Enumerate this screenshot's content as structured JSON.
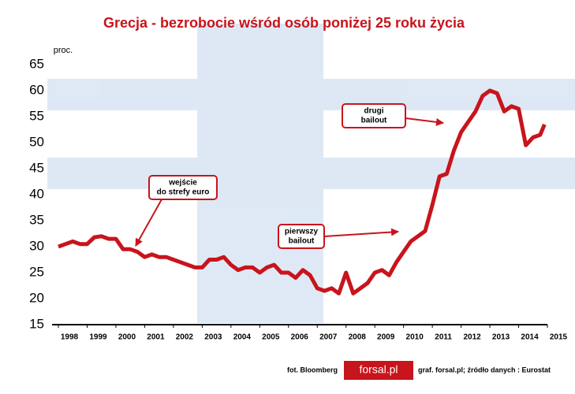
{
  "chart_data": {
    "type": "line",
    "title": "Grecja - bezrobocie wśród osób poniżej 25 roku życia",
    "y_label": "proc.",
    "x": [
      1998.0,
      1998.25,
      1998.5,
      1998.75,
      1999.0,
      1999.25,
      1999.5,
      1999.75,
      2000.0,
      2000.25,
      2000.5,
      2000.75,
      2001.0,
      2001.25,
      2001.5,
      2001.75,
      2002.0,
      2002.25,
      2002.5,
      2002.75,
      2003.0,
      2003.25,
      2003.5,
      2003.75,
      2004.0,
      2004.25,
      2004.5,
      2004.75,
      2005.0,
      2005.25,
      2005.5,
      2005.75,
      2006.0,
      2006.25,
      2006.5,
      2006.75,
      2007.0,
      2007.25,
      2007.5,
      2007.75,
      2008.0,
      2008.25,
      2008.5,
      2008.75,
      2009.0,
      2009.25,
      2009.5,
      2009.75,
      2010.0,
      2010.25,
      2010.5,
      2010.75,
      2011.0,
      2011.25,
      2011.5,
      2011.75,
      2012.0,
      2012.25,
      2012.5,
      2012.75,
      2013.0,
      2013.25,
      2013.5,
      2013.75,
      2014.0,
      2014.25,
      2014.5,
      2014.75,
      2014.9
    ],
    "series": [
      {
        "name": "bezrobocie",
        "color": "#c8141c",
        "values": [
          30,
          30.5,
          31,
          30.5,
          30.5,
          31.8,
          32,
          31.5,
          31.5,
          29.5,
          29.5,
          29,
          28,
          28.5,
          28,
          28,
          27.5,
          27,
          26.5,
          26,
          26,
          27.5,
          27.5,
          28,
          26.5,
          25.5,
          26,
          26,
          25,
          26,
          26.5,
          25,
          25,
          24,
          25.5,
          24.5,
          22,
          21.5,
          22,
          21,
          25,
          21,
          22,
          23,
          25,
          25.5,
          24.5,
          27,
          29,
          31,
          32,
          33,
          38,
          43.5,
          44,
          48.5,
          52,
          54,
          56,
          59,
          60,
          59.5,
          56,
          57,
          56.5,
          49.5,
          51,
          51.5,
          53.5
        ]
      }
    ],
    "xlim": [
      1998,
      2015
    ],
    "xticks": [
      1998,
      1999,
      2000,
      2001,
      2002,
      2003,
      2004,
      2005,
      2006,
      2007,
      2008,
      2009,
      2010,
      2011,
      2012,
      2013,
      2014,
      2015
    ],
    "ylim": [
      15,
      65
    ],
    "yticks": [
      15,
      20,
      25,
      30,
      35,
      40,
      45,
      50,
      55,
      60,
      65
    ],
    "annotations": [
      {
        "lines": [
          "wejście",
          "do strefy euro"
        ]
      },
      {
        "lines": [
          "pierwszy",
          "bailout"
        ]
      },
      {
        "lines": [
          "drugi",
          "bailout"
        ]
      }
    ],
    "footer": {
      "photo": "fot. Bloomberg",
      "logo": "forsal.pl",
      "source": "graf. forsal.pl;  źródło danych : Eurostat"
    }
  }
}
